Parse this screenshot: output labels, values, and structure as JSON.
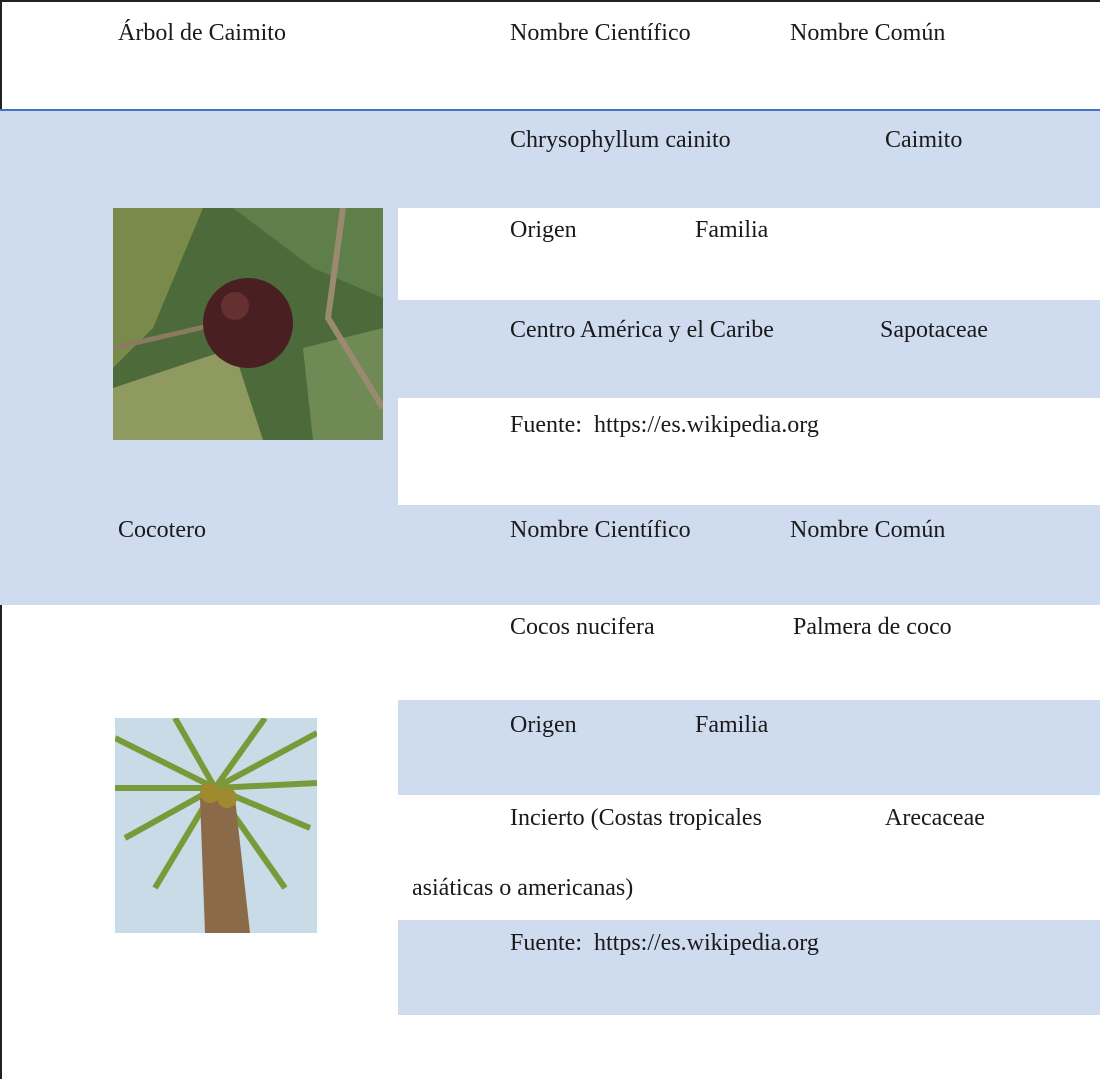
{
  "sections": [
    {
      "title": "Árbol de Caimito",
      "header": [
        "Nombre Científico",
        "Nombre Común"
      ],
      "scientific_name": "Chrysophyllum cainito",
      "common_name": "Caimito",
      "origin_label": "Origen",
      "family_label": "Familia",
      "origin_lines": [
        "Centro América y el Caribe"
      ],
      "family": "Sapotaceae",
      "source": "Fuente:  https://es.wikipedia.org"
    },
    {
      "title": "Cocotero",
      "header": [
        "Nombre Científico",
        "Nombre Común"
      ],
      "scientific_name": "Cocos nucifera",
      "common_name": "Palmera de coco",
      "origin_label": "Origen",
      "family_label": "Familia",
      "origin_lines": [
        "Incierto (Costas tropicales",
        "asiáticas o americanas)"
      ],
      "family": "Arecaceae",
      "source": "Fuente:  https://es.wikipedia.org"
    }
  ]
}
